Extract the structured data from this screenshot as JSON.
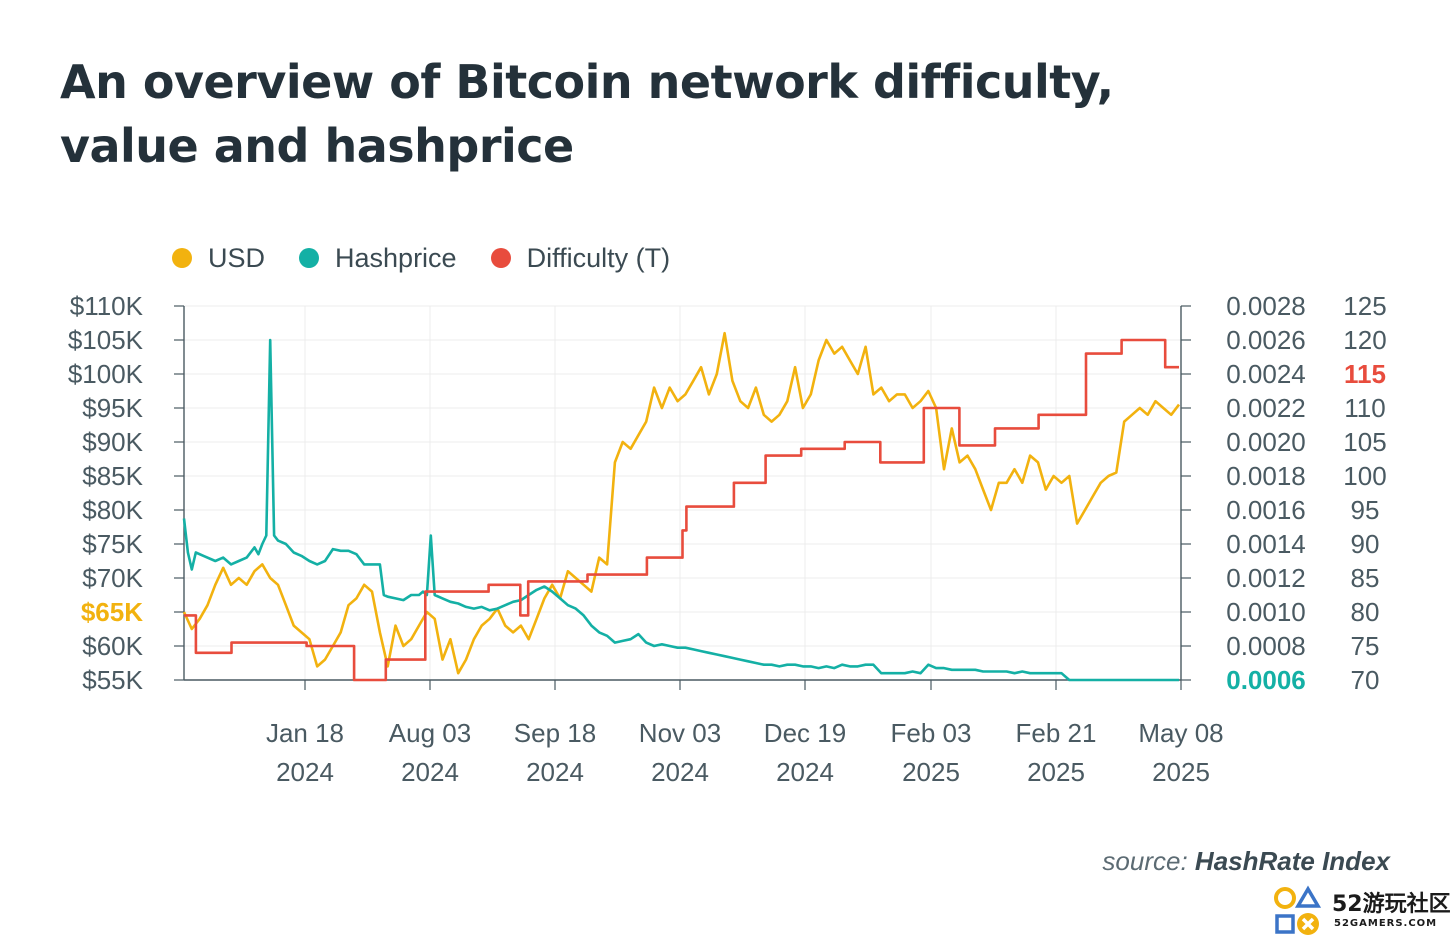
{
  "title": "An overview of Bitcoin network difficulty, value and hashprice",
  "source_prefix": "source: ",
  "source_name": "HashRate Index",
  "logo": {
    "text": "52游玩社区",
    "sub": "52GAMERS.COM"
  },
  "chart_data": {
    "type": "line",
    "legend_position": "top-left",
    "grid": true,
    "x_ticks": [
      {
        "line1": "Jan 18",
        "line2": "2024"
      },
      {
        "line1": "Aug 03",
        "line2": "2024"
      },
      {
        "line1": "Sep 18",
        "line2": "2024"
      },
      {
        "line1": "Nov 03",
        "line2": "2024"
      },
      {
        "line1": "Dec 19",
        "line2": "2024"
      },
      {
        "line1": "Feb 03",
        "line2": "2025"
      },
      {
        "line1": "Feb 21",
        "line2": "2025"
      },
      {
        "line1": "May 08",
        "line2": "2025"
      }
    ],
    "axes": {
      "usd": {
        "range": [
          55000,
          110000
        ],
        "ticks": [
          "$110K",
          "$105K",
          "$100K",
          "$95K",
          "$90K",
          "$85K",
          "$80K",
          "$75K",
          "$70K",
          "$65K",
          "$60K",
          "$55K"
        ],
        "highlight": "$65K",
        "highlight_color": "#f2b20f"
      },
      "hashprice": {
        "range": [
          0.0006,
          0.0028
        ],
        "ticks": [
          "0.0028",
          "0.0026",
          "0.0024",
          "0.0022",
          "0.0020",
          "0.0018",
          "0.0016",
          "0.0014",
          "0.0012",
          "0.0010",
          "0.0008",
          "0.0006"
        ],
        "highlight": "0.0006",
        "highlight_color": "#14b0a5"
      },
      "difficulty": {
        "range": [
          70,
          125
        ],
        "ticks": [
          "125",
          "120",
          "115",
          "110",
          "105",
          "100",
          "95",
          "90",
          "85",
          "80",
          "75",
          "70"
        ],
        "highlight": "115",
        "highlight_color": "#e84c3d"
      }
    },
    "series": [
      {
        "name": "USD",
        "axis": "usd",
        "color": "#f2b20f",
        "points": [
          [
            0,
            65000
          ],
          [
            2,
            62500
          ],
          [
            4,
            64000
          ],
          [
            6,
            66000
          ],
          [
            8,
            69000
          ],
          [
            10,
            71500
          ],
          [
            12,
            69000
          ],
          [
            14,
            70000
          ],
          [
            16,
            69000
          ],
          [
            18,
            71000
          ],
          [
            20,
            72000
          ],
          [
            22,
            70000
          ],
          [
            24,
            69000
          ],
          [
            26,
            66000
          ],
          [
            28,
            63000
          ],
          [
            30,
            62000
          ],
          [
            32,
            61000
          ],
          [
            34,
            57000
          ],
          [
            36,
            58000
          ],
          [
            38,
            60000
          ],
          [
            40,
            62000
          ],
          [
            42,
            66000
          ],
          [
            44,
            67000
          ],
          [
            46,
            69000
          ],
          [
            48,
            68000
          ],
          [
            50,
            62000
          ],
          [
            52,
            57000
          ],
          [
            54,
            63000
          ],
          [
            56,
            60000
          ],
          [
            58,
            61000
          ],
          [
            60,
            63000
          ],
          [
            62,
            65000
          ],
          [
            64,
            64000
          ],
          [
            66,
            58000
          ],
          [
            68,
            61000
          ],
          [
            70,
            56000
          ],
          [
            72,
            58000
          ],
          [
            74,
            61000
          ],
          [
            76,
            63000
          ],
          [
            78,
            64000
          ],
          [
            80,
            65500
          ],
          [
            82,
            63000
          ],
          [
            84,
            62000
          ],
          [
            86,
            63000
          ],
          [
            88,
            61000
          ],
          [
            90,
            64000
          ],
          [
            92,
            67000
          ],
          [
            94,
            69000
          ],
          [
            96,
            67000
          ],
          [
            98,
            71000
          ],
          [
            100,
            70000
          ],
          [
            102,
            69000
          ],
          [
            104,
            68000
          ],
          [
            106,
            73000
          ],
          [
            108,
            72000
          ],
          [
            110,
            87000
          ],
          [
            112,
            90000
          ],
          [
            114,
            89000
          ],
          [
            116,
            91000
          ],
          [
            118,
            93000
          ],
          [
            120,
            98000
          ],
          [
            122,
            95000
          ],
          [
            124,
            98000
          ],
          [
            126,
            96000
          ],
          [
            128,
            97000
          ],
          [
            130,
            99000
          ],
          [
            132,
            101000
          ],
          [
            134,
            97000
          ],
          [
            136,
            100000
          ],
          [
            138,
            106000
          ],
          [
            140,
            99000
          ],
          [
            142,
            96000
          ],
          [
            144,
            95000
          ],
          [
            146,
            98000
          ],
          [
            148,
            94000
          ],
          [
            150,
            93000
          ],
          [
            152,
            94000
          ],
          [
            154,
            96000
          ],
          [
            156,
            101000
          ],
          [
            158,
            95000
          ],
          [
            160,
            97000
          ],
          [
            162,
            102000
          ],
          [
            164,
            105000
          ],
          [
            166,
            103000
          ],
          [
            168,
            104000
          ],
          [
            170,
            102000
          ],
          [
            172,
            100000
          ],
          [
            174,
            104000
          ],
          [
            176,
            97000
          ],
          [
            178,
            98000
          ],
          [
            180,
            96000
          ],
          [
            182,
            97000
          ],
          [
            184,
            97000
          ],
          [
            186,
            95000
          ],
          [
            188,
            96000
          ],
          [
            190,
            97500
          ],
          [
            192,
            95000
          ],
          [
            194,
            86000
          ],
          [
            196,
            92000
          ],
          [
            198,
            87000
          ],
          [
            200,
            88000
          ],
          [
            202,
            86000
          ],
          [
            204,
            83000
          ],
          [
            206,
            80000
          ],
          [
            208,
            84000
          ],
          [
            210,
            84000
          ],
          [
            212,
            86000
          ],
          [
            214,
            84000
          ],
          [
            216,
            88000
          ],
          [
            218,
            87000
          ],
          [
            220,
            83000
          ],
          [
            222,
            85000
          ],
          [
            224,
            84000
          ],
          [
            226,
            85000
          ],
          [
            228,
            78000
          ],
          [
            230,
            80000
          ],
          [
            232,
            82000
          ],
          [
            234,
            84000
          ],
          [
            236,
            85000
          ],
          [
            238,
            85500
          ],
          [
            240,
            93000
          ],
          [
            242,
            94000
          ],
          [
            244,
            95000
          ],
          [
            246,
            94000
          ],
          [
            248,
            96000
          ],
          [
            250,
            95000
          ],
          [
            252,
            94000
          ],
          [
            254,
            95500
          ]
        ]
      },
      {
        "name": "Hashprice",
        "axis": "hashprice",
        "color": "#14b0a5",
        "points": [
          [
            0,
            0.00155
          ],
          [
            1,
            0.00135
          ],
          [
            2,
            0.00125
          ],
          [
            3,
            0.00135
          ],
          [
            5,
            0.00133
          ],
          [
            8,
            0.0013
          ],
          [
            10,
            0.00132
          ],
          [
            12,
            0.00128
          ],
          [
            14,
            0.0013
          ],
          [
            16,
            0.00132
          ],
          [
            18,
            0.00138
          ],
          [
            19,
            0.00134
          ],
          [
            20,
            0.0014
          ],
          [
            21,
            0.00145
          ],
          [
            22,
            0.0026
          ],
          [
            23,
            0.00145
          ],
          [
            24,
            0.00142
          ],
          [
            26,
            0.0014
          ],
          [
            28,
            0.00135
          ],
          [
            30,
            0.00133
          ],
          [
            32,
            0.0013
          ],
          [
            34,
            0.00128
          ],
          [
            36,
            0.0013
          ],
          [
            38,
            0.00137
          ],
          [
            40,
            0.00136
          ],
          [
            42,
            0.00136
          ],
          [
            44,
            0.00134
          ],
          [
            46,
            0.00128
          ],
          [
            48,
            0.00128
          ],
          [
            50,
            0.00128
          ],
          [
            51,
            0.0011
          ],
          [
            52,
            0.00109
          ],
          [
            54,
            0.00108
          ],
          [
            56,
            0.00107
          ],
          [
            58,
            0.0011
          ],
          [
            60,
            0.0011
          ],
          [
            61,
            0.00112
          ],
          [
            62,
            0.0011
          ],
          [
            63,
            0.00145
          ],
          [
            64,
            0.0011
          ],
          [
            66,
            0.00108
          ],
          [
            68,
            0.00106
          ],
          [
            70,
            0.00105
          ],
          [
            72,
            0.00103
          ],
          [
            74,
            0.00102
          ],
          [
            76,
            0.00103
          ],
          [
            78,
            0.00101
          ],
          [
            80,
            0.00102
          ],
          [
            82,
            0.00104
          ],
          [
            84,
            0.00106
          ],
          [
            86,
            0.00107
          ],
          [
            88,
            0.0011
          ],
          [
            90,
            0.00113
          ],
          [
            92,
            0.00115
          ],
          [
            94,
            0.00112
          ],
          [
            96,
            0.00108
          ],
          [
            98,
            0.00104
          ],
          [
            100,
            0.00102
          ],
          [
            102,
            0.00098
          ],
          [
            104,
            0.00092
          ],
          [
            106,
            0.00088
          ],
          [
            108,
            0.00086
          ],
          [
            110,
            0.00082
          ],
          [
            112,
            0.00083
          ],
          [
            114,
            0.00084
          ],
          [
            116,
            0.00087
          ],
          [
            118,
            0.00082
          ],
          [
            120,
            0.0008
          ],
          [
            122,
            0.00081
          ],
          [
            124,
            0.0008
          ],
          [
            126,
            0.00079
          ],
          [
            128,
            0.00079
          ],
          [
            130,
            0.00078
          ],
          [
            132,
            0.00077
          ],
          [
            134,
            0.00076
          ],
          [
            136,
            0.00075
          ],
          [
            138,
            0.00074
          ],
          [
            140,
            0.00073
          ],
          [
            142,
            0.00072
          ],
          [
            144,
            0.00071
          ],
          [
            146,
            0.0007
          ],
          [
            148,
            0.00069
          ],
          [
            150,
            0.00069
          ],
          [
            152,
            0.00068
          ],
          [
            154,
            0.00069
          ],
          [
            156,
            0.00069
          ],
          [
            158,
            0.00068
          ],
          [
            160,
            0.00068
          ],
          [
            162,
            0.00067
          ],
          [
            164,
            0.00068
          ],
          [
            166,
            0.00067
          ],
          [
            168,
            0.00069
          ],
          [
            170,
            0.00068
          ],
          [
            172,
            0.00068
          ],
          [
            174,
            0.00069
          ],
          [
            176,
            0.00069
          ],
          [
            178,
            0.00064
          ],
          [
            180,
            0.00064
          ],
          [
            182,
            0.00064
          ],
          [
            184,
            0.00064
          ],
          [
            186,
            0.00065
          ],
          [
            188,
            0.00064
          ],
          [
            190,
            0.00069
          ],
          [
            192,
            0.00067
          ],
          [
            194,
            0.00067
          ],
          [
            196,
            0.00066
          ],
          [
            198,
            0.00066
          ],
          [
            200,
            0.00066
          ],
          [
            202,
            0.00066
          ],
          [
            204,
            0.00065
          ],
          [
            206,
            0.00065
          ],
          [
            208,
            0.00065
          ],
          [
            210,
            0.00065
          ],
          [
            212,
            0.00064
          ],
          [
            214,
            0.00065
          ],
          [
            216,
            0.00064
          ],
          [
            218,
            0.00064
          ],
          [
            220,
            0.00064
          ],
          [
            222,
            0.00064
          ],
          [
            224,
            0.00064
          ],
          [
            226,
            0.0006
          ],
          [
            228,
            0.0006
          ],
          [
            230,
            0.0006
          ],
          [
            232,
            0.0006
          ],
          [
            234,
            0.0006
          ],
          [
            236,
            0.0006
          ],
          [
            238,
            0.0006
          ],
          [
            240,
            0.0006
          ],
          [
            242,
            0.0006
          ],
          [
            244,
            0.0006
          ],
          [
            246,
            0.0006
          ],
          [
            248,
            0.0006
          ],
          [
            250,
            0.0006
          ],
          [
            252,
            0.0006
          ],
          [
            254,
            0.0006
          ]
        ]
      },
      {
        "name": "Difficulty (T)",
        "axis": "difficulty",
        "color": "#e84c3d",
        "steps": [
          [
            0,
            79.5
          ],
          [
            6,
            74
          ],
          [
            24,
            75.5
          ],
          [
            62,
            75
          ],
          [
            86,
            70
          ],
          [
            102,
            73
          ],
          [
            122,
            83
          ],
          [
            154,
            84
          ],
          [
            170,
            79.5
          ],
          [
            174,
            84.5
          ],
          [
            204,
            85.5
          ],
          [
            234,
            88
          ],
          [
            252,
            92
          ],
          [
            254,
            95.5
          ],
          [
            278,
            99
          ],
          [
            294,
            103
          ],
          [
            312,
            104
          ],
          [
            334,
            105
          ],
          [
            352,
            102
          ],
          [
            374,
            110
          ],
          [
            392,
            104.5
          ],
          [
            410,
            107
          ],
          [
            432,
            109
          ],
          [
            456,
            118
          ],
          [
            474,
            120
          ],
          [
            496,
            116
          ],
          [
            503,
            116
          ]
        ]
      }
    ]
  }
}
